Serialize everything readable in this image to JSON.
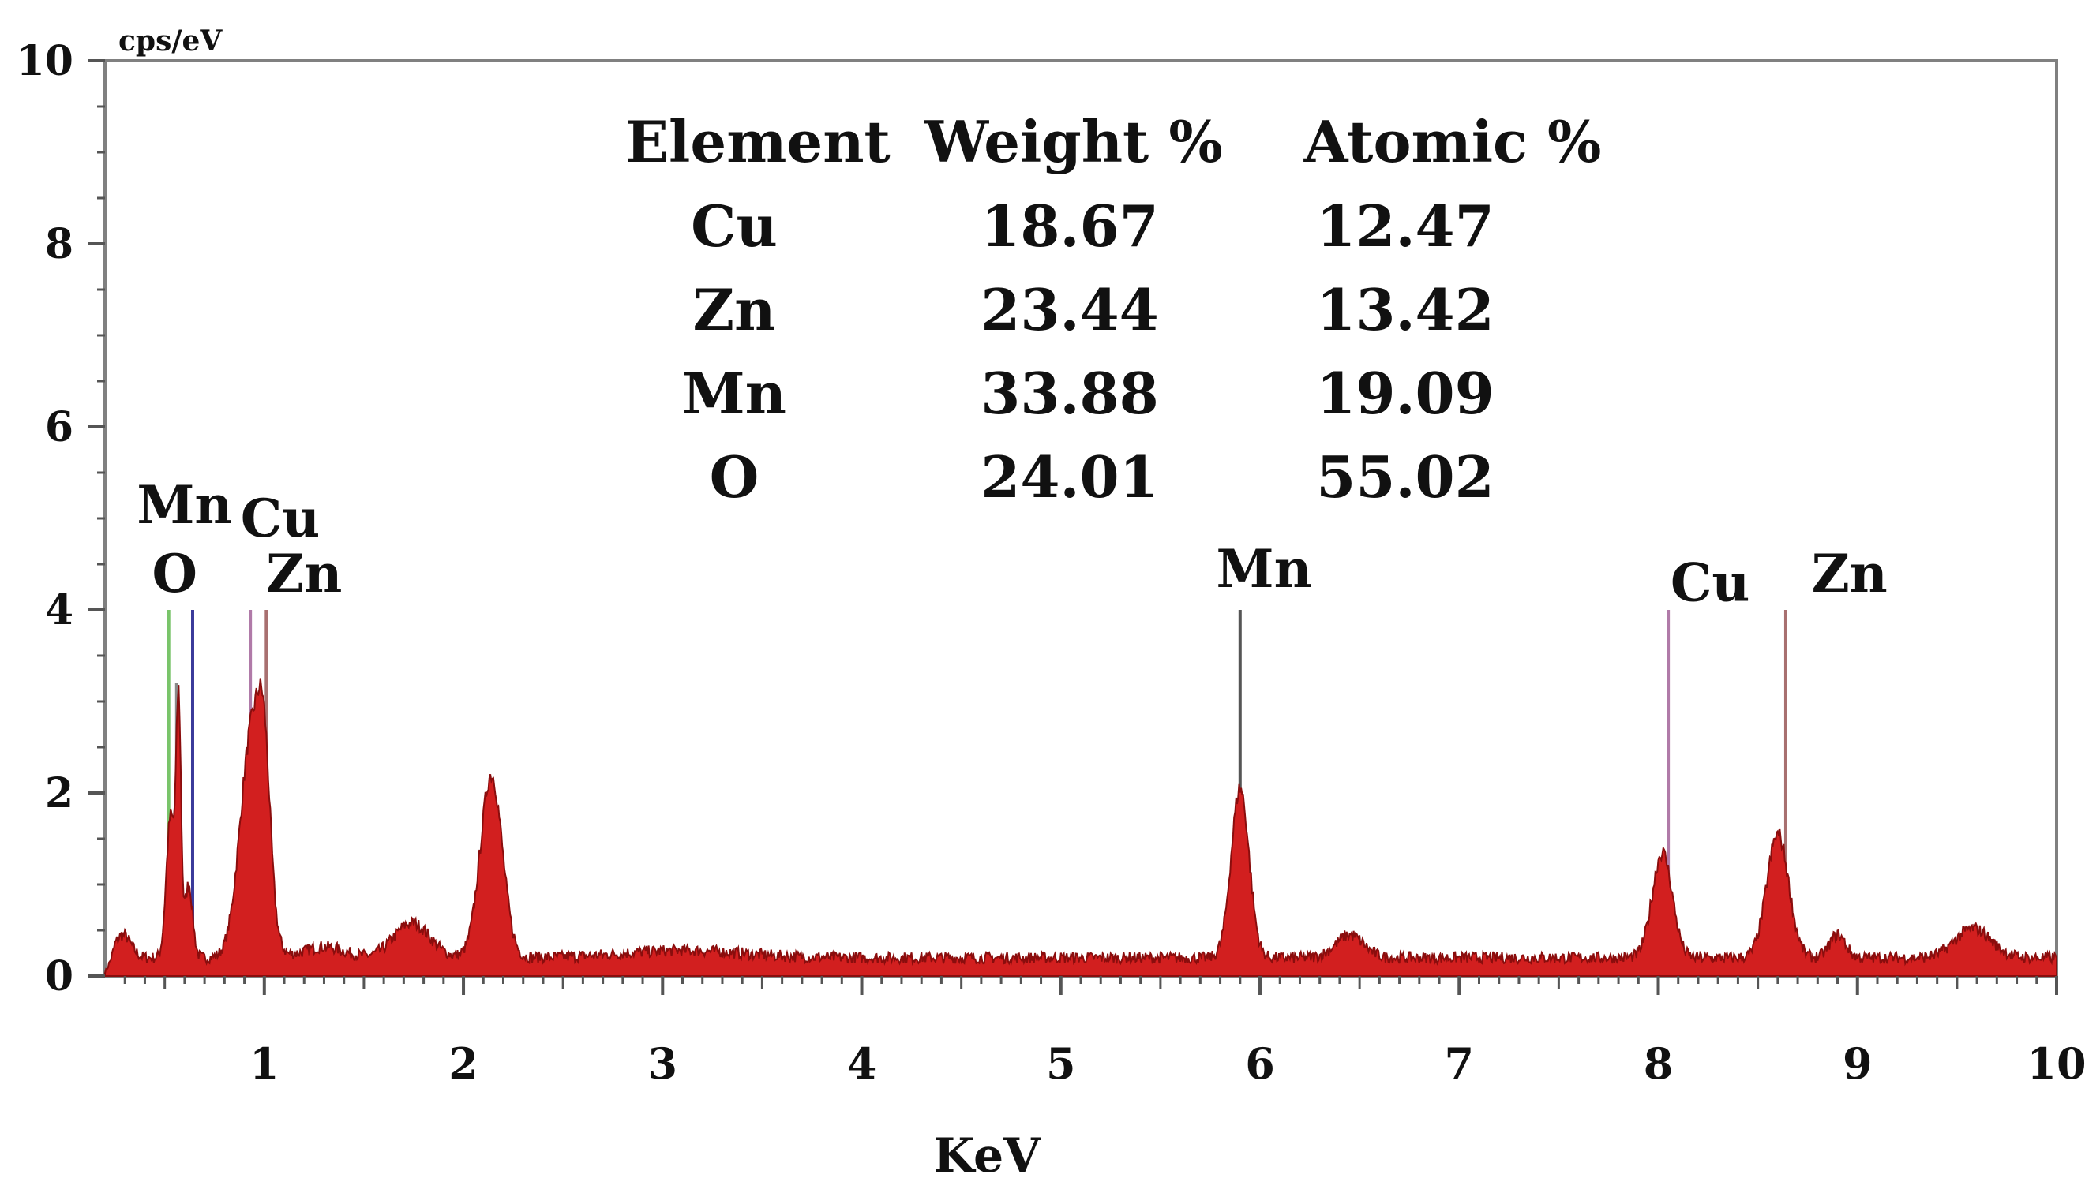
{
  "chart_data": {
    "type": "area",
    "title": "",
    "xlabel": "KeV",
    "ylabel": "cps/eV",
    "xlim": [
      0.2,
      10
    ],
    "ylim": [
      0,
      10
    ],
    "x_ticks": [
      1,
      2,
      3,
      4,
      5,
      6,
      7,
      8,
      9,
      10
    ],
    "y_ticks": [
      0,
      2,
      4,
      6,
      8,
      10
    ],
    "y_tick_labels": [
      "0",
      "2",
      "4",
      "6",
      "8",
      "10"
    ],
    "grid": false,
    "fill_color": "#d21f1f",
    "line_color": "#8a0d0d",
    "spectrum": {
      "background": 0.2,
      "peaks": [
        {
          "center": 0.29,
          "height": 0.25,
          "width": 0.04
        },
        {
          "center": 0.53,
          "height": 1.55,
          "width": 0.022
        },
        {
          "center": 0.57,
          "height": 2.6,
          "width": 0.012
        },
        {
          "center": 0.62,
          "height": 0.8,
          "width": 0.02
        },
        {
          "center": 0.94,
          "height": 2.5,
          "width": 0.06
        },
        {
          "center": 1.0,
          "height": 1.2,
          "width": 0.03
        },
        {
          "center": 1.3,
          "height": 0.12,
          "width": 0.1
        },
        {
          "center": 1.74,
          "height": 0.38,
          "width": 0.09
        },
        {
          "center": 2.14,
          "height": 2.0,
          "width": 0.055
        },
        {
          "center": 3.1,
          "height": 0.08,
          "width": 0.3
        },
        {
          "center": 5.9,
          "height": 1.85,
          "width": 0.045
        },
        {
          "center": 6.45,
          "height": 0.25,
          "width": 0.07
        },
        {
          "center": 8.02,
          "height": 1.15,
          "width": 0.05
        },
        {
          "center": 8.6,
          "height": 1.35,
          "width": 0.055
        },
        {
          "center": 8.9,
          "height": 0.25,
          "width": 0.04
        },
        {
          "center": 9.58,
          "height": 0.32,
          "width": 0.09
        }
      ]
    },
    "marker_lines": [
      {
        "x": 0.52,
        "height": 4.0,
        "color": "#79c46a"
      },
      {
        "x": 0.56,
        "height": 3.2,
        "color": "#8a8a8a"
      },
      {
        "x": 0.64,
        "height": 4.0,
        "color": "#3a3a9a"
      },
      {
        "x": 0.93,
        "height": 4.0,
        "color": "#b07aa8"
      },
      {
        "x": 1.01,
        "height": 4.0,
        "color": "#a87070"
      },
      {
        "x": 5.9,
        "height": 4.0,
        "color": "#555555"
      },
      {
        "x": 8.05,
        "height": 4.0,
        "color": "#b07aa8"
      },
      {
        "x": 8.64,
        "height": 4.0,
        "color": "#a87070"
      }
    ],
    "peak_labels": [
      {
        "text": "Mn",
        "x": 0.6,
        "y": 4.95
      },
      {
        "text": "O",
        "x": 0.55,
        "y": 4.2
      },
      {
        "text": "Cu",
        "x": 1.08,
        "y": 4.8
      },
      {
        "text": "Zn",
        "x": 1.2,
        "y": 4.2
      },
      {
        "text": "Mn",
        "x": 6.02,
        "y": 4.25
      },
      {
        "text": "Cu",
        "x": 8.26,
        "y": 4.1
      },
      {
        "text": "Zn",
        "x": 8.96,
        "y": 4.2
      }
    ],
    "composition_table": {
      "headers": [
        "Element",
        "Weight %",
        "Atomic %"
      ],
      "rows": [
        [
          "Cu",
          "18.67",
          "12.47"
        ],
        [
          "Zn",
          "23.44",
          "13.42"
        ],
        [
          "Mn",
          "33.88",
          "19.09"
        ],
        [
          "O",
          "24.01",
          "55.02"
        ]
      ]
    }
  }
}
